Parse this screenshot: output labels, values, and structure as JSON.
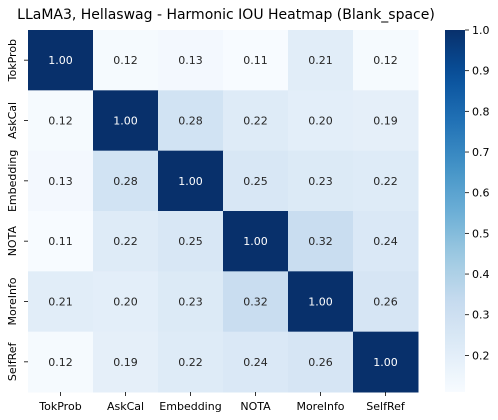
{
  "chart_data": {
    "type": "heatmap",
    "title": "LLaMA3, Hellaswag - Harmonic IOU Heatmap (Blank_space)",
    "xlabel": "",
    "ylabel": "",
    "x_categories": [
      "TokProb",
      "AskCal",
      "Embedding",
      "NOTA",
      "MoreInfo",
      "SelfRef"
    ],
    "y_categories": [
      "TokProb",
      "AskCal",
      "Embedding",
      "NOTA",
      "MoreInfo",
      "SelfRef"
    ],
    "values": [
      [
        1.0,
        0.12,
        0.13,
        0.11,
        0.21,
        0.12
      ],
      [
        0.12,
        1.0,
        0.28,
        0.22,
        0.2,
        0.19
      ],
      [
        0.13,
        0.28,
        1.0,
        0.25,
        0.23,
        0.22
      ],
      [
        0.11,
        0.22,
        0.25,
        1.0,
        0.32,
        0.24
      ],
      [
        0.21,
        0.2,
        0.23,
        0.32,
        1.0,
        0.26
      ],
      [
        0.12,
        0.19,
        0.22,
        0.24,
        0.26,
        1.0
      ]
    ],
    "value_format": "0.00",
    "colormap": "Blues",
    "color_range": [
      0.11,
      1.0
    ],
    "colorbar_ticks": [
      "0.2",
      "0.3",
      "0.4",
      "0.5",
      "0.6",
      "0.7",
      "0.8",
      "0.9",
      "1.0"
    ],
    "colorbar_tick_values": [
      0.2,
      0.3,
      0.4,
      0.5,
      0.6,
      0.7,
      0.8,
      0.9,
      1.0
    ],
    "grid": false,
    "legend": "colorbar-right"
  }
}
